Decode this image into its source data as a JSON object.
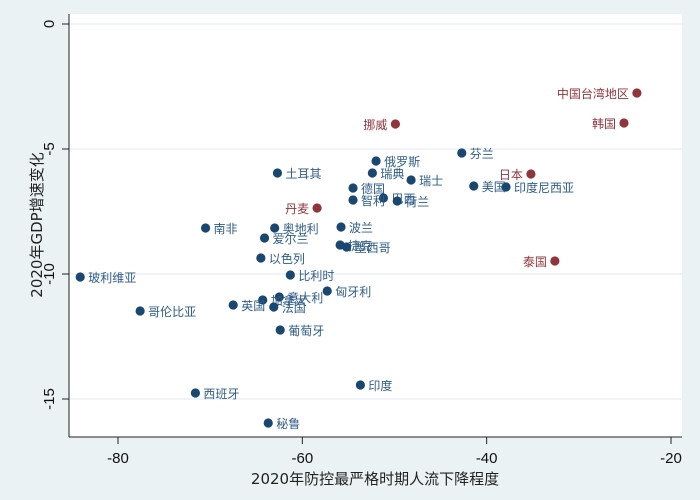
{
  "chart_data": {
    "type": "scatter",
    "title": "",
    "xlabel": "2020年防控最严格时期人流下降程度",
    "ylabel": "2020年GDP增速变化",
    "xlim": [
      -85.5,
      -18.8
    ],
    "ylim": [
      -16.5,
      0.4
    ],
    "xticks": [
      -80,
      -60,
      -40,
      -20
    ],
    "yticks": [
      0,
      -5,
      -10,
      -15
    ],
    "grid": "horizontal",
    "legend": null,
    "colors": {
      "highlight": "#90353b",
      "default": "#1a476f",
      "highlight_label": "#90353b",
      "default_label": "#2f5c88"
    },
    "series": [
      {
        "name": "highlight",
        "color": "#90353b",
        "points": [
          {
            "label": "中国台湾地区",
            "x": -23.7,
            "y": -2.76,
            "label_pos": "left"
          },
          {
            "label": "韩国",
            "x": -25.1,
            "y": -3.96,
            "label_pos": "left"
          },
          {
            "label": "挪威",
            "x": -49.9,
            "y": -4.0,
            "label_pos": "left"
          },
          {
            "label": "日本",
            "x": -35.2,
            "y": -6.0,
            "label_pos": "left"
          },
          {
            "label": "丹麦",
            "x": -58.4,
            "y": -7.36,
            "label_pos": "left"
          },
          {
            "label": "泰国",
            "x": -32.6,
            "y": -9.48,
            "label_pos": "left"
          }
        ]
      },
      {
        "name": "default",
        "color": "#1a476f",
        "points": [
          {
            "label": "芬兰",
            "x": -42.7,
            "y": -5.16,
            "label_pos": "right"
          },
          {
            "label": "俄罗斯",
            "x": -52.0,
            "y": -5.48,
            "label_pos": "right"
          },
          {
            "label": "瑞典",
            "x": -52.4,
            "y": -5.96,
            "label_pos": "right"
          },
          {
            "label": "瑞士",
            "x": -48.2,
            "y": -6.24,
            "label_pos": "right"
          },
          {
            "label": "美国",
            "x": -41.4,
            "y": -6.48,
            "label_pos": "right"
          },
          {
            "label": "印度尼西亚",
            "x": -37.9,
            "y": -6.52,
            "label_pos": "right"
          },
          {
            "label": "德国",
            "x": -54.5,
            "y": -6.56,
            "label_pos": "right"
          },
          {
            "label": "巴西",
            "x": -51.2,
            "y": -6.96,
            "label_pos": "right"
          },
          {
            "label": "智利",
            "x": -54.5,
            "y": -7.04,
            "label_pos": "right"
          },
          {
            "label": "荷兰",
            "x": -49.7,
            "y": -7.08,
            "label_pos": "right"
          },
          {
            "label": "土耳其",
            "x": -62.7,
            "y": -5.96,
            "label_pos": "right"
          },
          {
            "label": "南非",
            "x": -70.5,
            "y": -8.16,
            "label_pos": "right"
          },
          {
            "label": "奥地利",
            "x": -63.0,
            "y": -8.16,
            "label_pos": "right"
          },
          {
            "label": "波兰",
            "x": -55.8,
            "y": -8.12,
            "label_pos": "right"
          },
          {
            "label": "爱尔兰",
            "x": -64.1,
            "y": -8.56,
            "label_pos": "right"
          },
          {
            "label": "捷克",
            "x": -55.9,
            "y": -8.84,
            "label_pos": "right"
          },
          {
            "label": "墨西哥",
            "x": -55.2,
            "y": -8.92,
            "label_pos": "right"
          },
          {
            "label": "以色列",
            "x": -64.5,
            "y": -9.36,
            "label_pos": "right"
          },
          {
            "label": "比利时",
            "x": -61.3,
            "y": -10.04,
            "label_pos": "right"
          },
          {
            "label": "玻利维亚",
            "x": -84.1,
            "y": -10.12,
            "label_pos": "right"
          },
          {
            "label": "匈牙利",
            "x": -57.3,
            "y": -10.68,
            "label_pos": "right"
          },
          {
            "label": "意大利",
            "x": -62.5,
            "y": -10.92,
            "label_pos": "right"
          },
          {
            "label": "加拿大",
            "x": -64.3,
            "y": -11.04,
            "label_pos": "right"
          },
          {
            "label": "英国",
            "x": -67.5,
            "y": -11.24,
            "label_pos": "right"
          },
          {
            "label": "法国",
            "x": -63.1,
            "y": -11.32,
            "label_pos": "right"
          },
          {
            "label": "哥伦比亚",
            "x": -77.6,
            "y": -11.48,
            "label_pos": "right"
          },
          {
            "label": "葡萄牙",
            "x": -62.4,
            "y": -12.24,
            "label_pos": "right"
          },
          {
            "label": "印度",
            "x": -53.7,
            "y": -14.44,
            "label_pos": "right"
          },
          {
            "label": "西班牙",
            "x": -71.6,
            "y": -14.76,
            "label_pos": "right"
          },
          {
            "label": "秘鲁",
            "x": -63.7,
            "y": -15.96,
            "label_pos": "right"
          }
        ]
      }
    ]
  }
}
